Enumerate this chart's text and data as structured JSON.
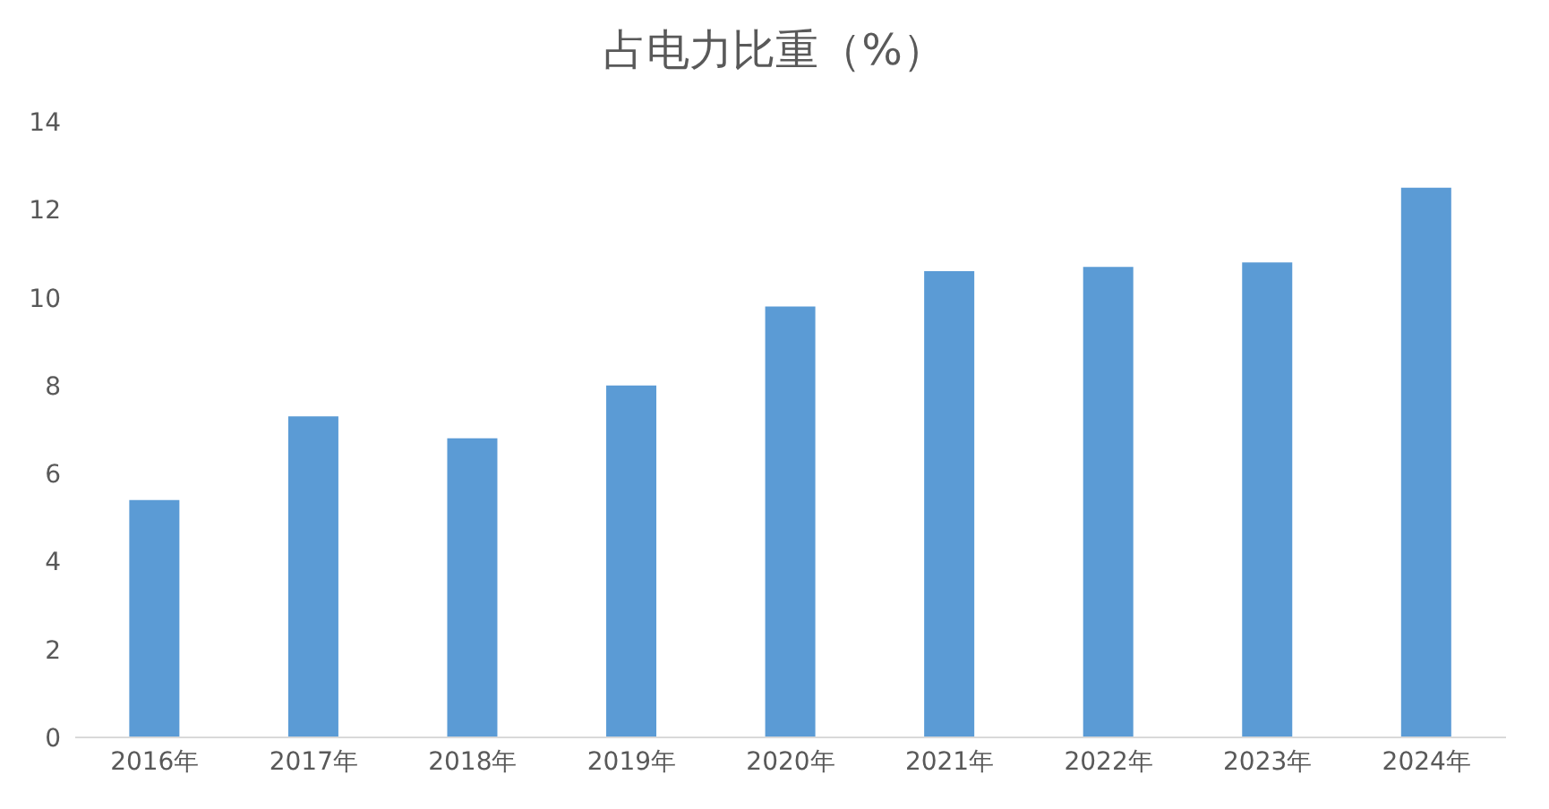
{
  "chart_data": {
    "type": "bar",
    "title": "占电力比重（%）",
    "categories": [
      "2016年",
      "2017年",
      "2018年",
      "2019年",
      "2020年",
      "2021年",
      "2022年",
      "2023年",
      "2024年"
    ],
    "values": [
      5.4,
      7.3,
      6.8,
      8.0,
      9.8,
      10.6,
      10.7,
      10.8,
      12.5
    ],
    "color": "#5b9bd5",
    "ylim": [
      0,
      14
    ],
    "yticks": [
      0,
      2,
      4,
      6,
      8,
      10,
      12,
      14
    ],
    "grid": false
  }
}
